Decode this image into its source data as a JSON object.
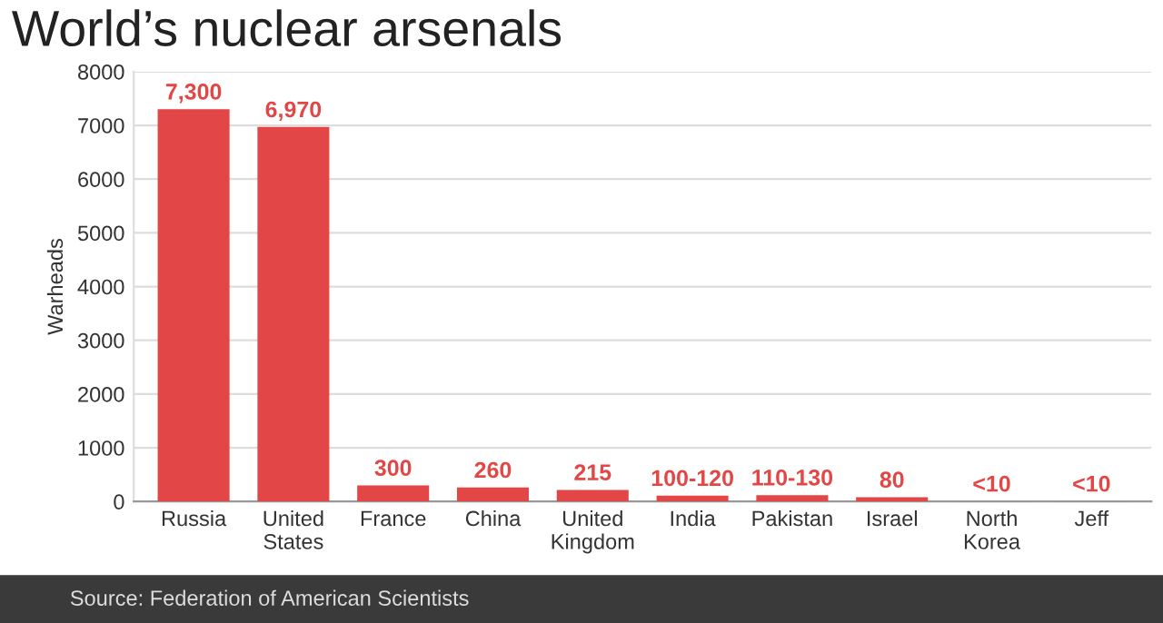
{
  "chart_data": {
    "type": "bar",
    "title": "World’s nuclear arsenals",
    "ylabel": "Warheads",
    "categories": [
      "Russia",
      "United\nStates",
      "France",
      "China",
      "United\nKingdom",
      "India",
      "Pakistan",
      "Israel",
      "North\nKorea",
      "Jeff"
    ],
    "values": [
      7300,
      6970,
      300,
      260,
      215,
      110,
      120,
      80,
      5,
      5
    ],
    "value_labels": [
      "7,300",
      "6,970",
      "300",
      "260",
      "215",
      "100-120",
      "110-130",
      "80",
      "<10",
      "<10"
    ],
    "color": "#e24646",
    "ylim": [
      0,
      8000
    ],
    "yticks": [
      0,
      1000,
      2000,
      3000,
      4000,
      5000,
      6000,
      7000,
      8000
    ],
    "grid": "y",
    "annotations": [
      "Source: Federation of American Scientists"
    ]
  }
}
